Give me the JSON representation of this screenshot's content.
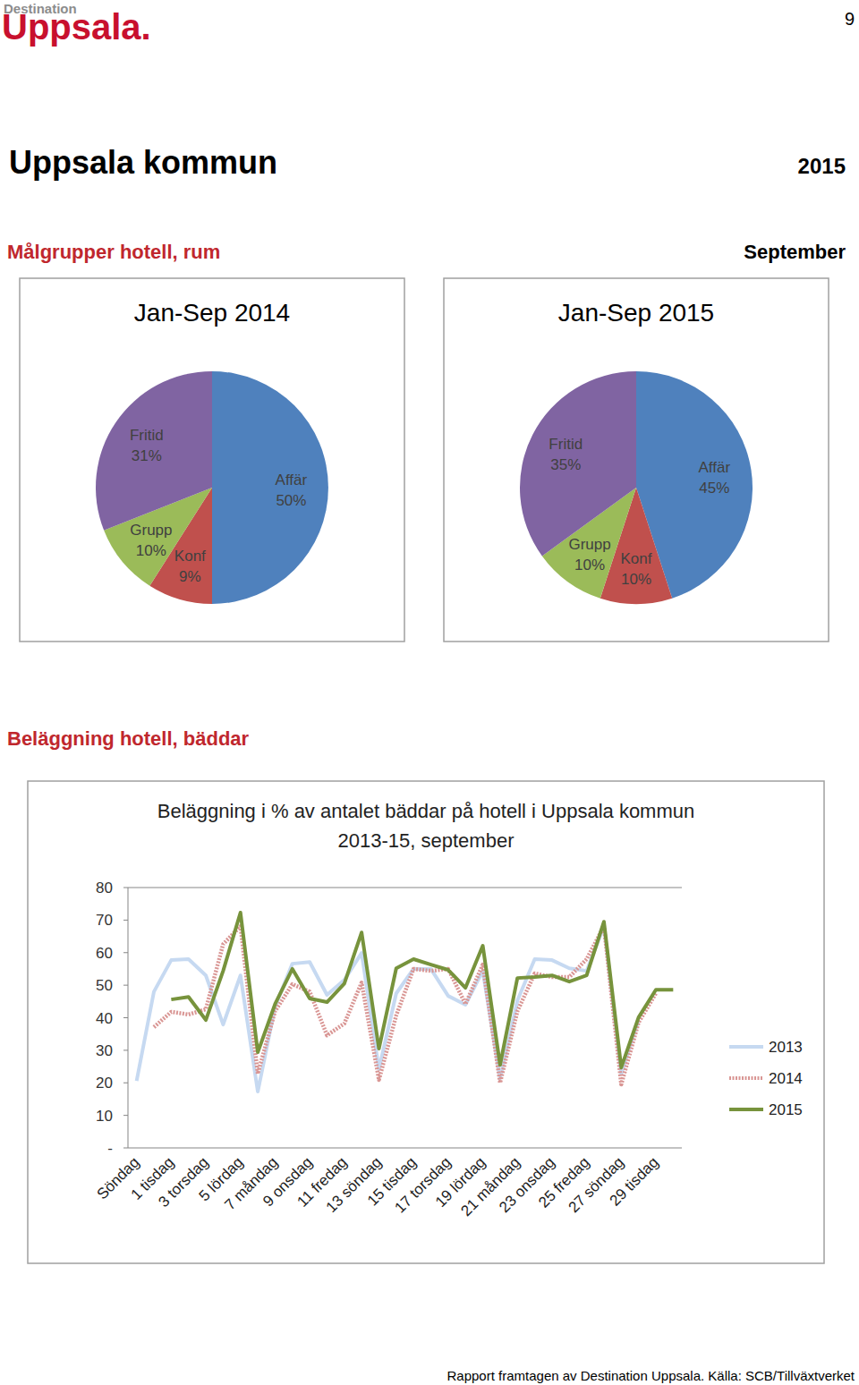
{
  "page": {
    "logo_top": "Destination",
    "logo_main": "Uppsala.",
    "page_number": "9",
    "title": "Uppsala kommun",
    "year": "2015",
    "section1": "Målgrupper hotell, rum",
    "month": "September",
    "section2": "Beläggning hotell, bäddar",
    "footer": "Rapport framtagen av Destination Uppsala. Källa: SCB/Tillväxtverket"
  },
  "chart_data": [
    {
      "type": "pie",
      "title": "Jan-Sep 2014",
      "categories": [
        "Affär",
        "Konf",
        "Grupp",
        "Fritid"
      ],
      "values": [
        50,
        9,
        10,
        31
      ],
      "value_labels": [
        "50%",
        "9%",
        "10%",
        "31%"
      ],
      "colors": [
        "#4f81bd",
        "#c0504d",
        "#9bbb59",
        "#8064a2"
      ],
      "data_labels": true
    },
    {
      "type": "pie",
      "title": "Jan-Sep 2015",
      "categories": [
        "Affär",
        "Konf",
        "Grupp",
        "Fritid"
      ],
      "values": [
        45,
        10,
        10,
        35
      ],
      "value_labels": [
        "45%",
        "10%",
        "10%",
        "35%"
      ],
      "colors": [
        "#4f81bd",
        "#c0504d",
        "#9bbb59",
        "#8064a2"
      ],
      "data_labels": true
    },
    {
      "type": "line",
      "title": "Beläggning i % av antalet bäddar på hotell i Uppsala kommun",
      "subtitle": "2013-15, september",
      "categories": [
        "Söndag",
        null,
        "1 tisdag",
        null,
        "3 torsdag",
        null,
        "5 lördag",
        null,
        "7 måndag",
        null,
        "9 onsdag",
        null,
        "11 fredag",
        null,
        "13 söndag",
        null,
        "15 tisdag",
        null,
        "17 torsdag",
        null,
        "19 lördag",
        null,
        "21 måndag",
        null,
        "23 onsdag",
        null,
        "25 fredag",
        null,
        "27 söndag",
        null,
        "29 tisdag",
        null
      ],
      "series": [
        {
          "name": "2013",
          "color": "#c6d9f1",
          "line_style": "solid",
          "values": [
            20.6,
            48,
            57.7,
            58,
            53,
            37.9,
            53,
            17.3,
            43.4,
            56.6,
            57.1,
            47,
            51.6,
            59.9,
            24.2,
            47.5,
            55,
            55,
            46.7,
            44,
            54.4,
            21.4,
            45.3,
            58,
            57.7,
            55.2,
            54.4,
            68.1,
            22.8,
            39.3,
            null,
            null
          ]
        },
        {
          "name": "2014",
          "color": "#d99694",
          "line_style": "dotted",
          "values": [
            null,
            37.1,
            41.8,
            41,
            42.6,
            62.6,
            68.1,
            22.8,
            42,
            50.3,
            48,
            34.6,
            38.2,
            50.8,
            20.9,
            40.7,
            55,
            54.4,
            55,
            44.2,
            56.3,
            20,
            42,
            53.6,
            52.5,
            52.5,
            58,
            68.1,
            19.5,
            38.5,
            47.5,
            null
          ]
        },
        {
          "name": "2015",
          "color": "#77933c",
          "line_style": "solid",
          "values": [
            null,
            null,
            45.6,
            46.4,
            39.3,
            54.4,
            72.3,
            29.4,
            44.2,
            55,
            45.9,
            44.8,
            50.5,
            66.2,
            30.5,
            55.2,
            58,
            56.3,
            54.7,
            49.2,
            62.1,
            25.5,
            52.2,
            52.5,
            53,
            51.1,
            53,
            69.5,
            24.7,
            40.1,
            48.6,
            48.6
          ]
        }
      ],
      "ylim": [
        0,
        80
      ],
      "yticks": [
        {
          "value": 0,
          "label": "-"
        },
        10,
        20,
        30,
        40,
        50,
        60,
        70,
        80
      ],
      "grid": false,
      "legend": "right"
    }
  ]
}
